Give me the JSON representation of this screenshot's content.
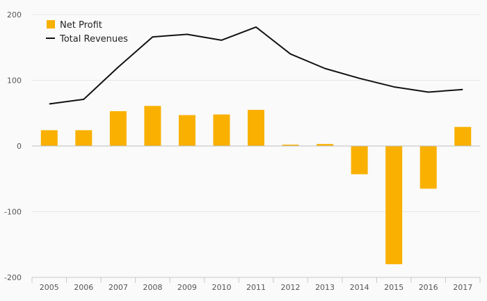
{
  "chart_data": {
    "type": "bar",
    "title": "",
    "xlabel": "",
    "ylabel": "",
    "categories": [
      "2005",
      "2006",
      "2007",
      "2008",
      "2009",
      "2010",
      "2011",
      "2012",
      "2013",
      "2014",
      "2015",
      "2016",
      "2017"
    ],
    "ylim": [
      -200,
      200
    ],
    "yticks": [
      -200,
      -100,
      0,
      100,
      200
    ],
    "grid": true,
    "legend_position": "top-left",
    "series": [
      {
        "name": "Net Profit",
        "kind": "bar",
        "color": "#f9b000",
        "values": [
          24,
          24,
          53,
          61,
          47,
          48,
          55,
          2,
          3,
          -43,
          -180,
          -65,
          29
        ]
      },
      {
        "name": "Total Revenues",
        "kind": "line",
        "color": "#111111",
        "values": [
          64,
          71,
          120,
          166,
          170,
          161,
          181,
          140,
          118,
          103,
          90,
          82,
          86
        ]
      }
    ]
  }
}
